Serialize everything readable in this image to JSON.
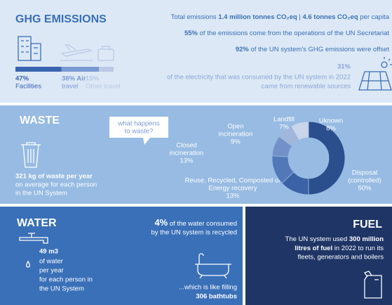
{
  "ghg": {
    "title": "GHG EMISSIONS",
    "total": [
      "Total emissions ",
      "1.4 million tonnes CO₂eq",
      " | ",
      "4.6 tonnes CO₂eq",
      " per capita"
    ],
    "secretariat": [
      "55%",
      " of the emissions come from the operations of the UN Secretariat"
    ],
    "offset": [
      "92%",
      " of the UN system's GHG emissions were offset"
    ],
    "renewable": {
      "value": "31%",
      "lines": [
        "of the electricity that was consumed by the UN system in 2022",
        "came from renewable sources"
      ]
    },
    "breakdown": [
      {
        "value": 47,
        "label": "47%",
        "name": [
          "Facilities"
        ],
        "color": "#3a63b0"
      },
      {
        "value": 38,
        "label": "38% Air",
        "name": [
          "travel"
        ],
        "color": "#7a9ad2"
      },
      {
        "value": 15,
        "label": "15%",
        "name": [
          "Other travel"
        ],
        "color": "#b9c9e6"
      }
    ]
  },
  "waste": {
    "title": "WASTE",
    "question": [
      "what happens",
      "to waste?"
    ],
    "per_person": [
      "321 kg of waste per year",
      "on average for each person",
      "in the UN System"
    ],
    "segments": [
      {
        "name": [
          "Disposal",
          "(controlled)"
        ],
        "value": 50,
        "label": "50%",
        "color": "#2b4e8c"
      },
      {
        "name": [
          "Reuse, Recycled, Composted or",
          "Energy recovery"
        ],
        "value": 13,
        "label": "13%",
        "color": "#3b62a6"
      },
      {
        "name": [
          "Closed",
          "incineration"
        ],
        "value": 13,
        "label": "13%",
        "color": "#5278b8"
      },
      {
        "name": [
          "Open",
          "incineration"
        ],
        "value": 9,
        "label": "9%",
        "color": "#7391c8"
      },
      {
        "name": [
          "Landfill"
        ],
        "value": 7,
        "label": "7%",
        "color": "#a2b6da"
      },
      {
        "name": [
          "Uknown"
        ],
        "value": 8,
        "label": "8%",
        "color": "#c9d5ea"
      }
    ]
  },
  "water": {
    "title": "WATER",
    "amount": "49 m3",
    "amount_lines": [
      "of water",
      "per year",
      "for each person in",
      "the UN System"
    ],
    "recycled": [
      "4%",
      " of the water consumed",
      "by the UN system is recycled"
    ],
    "bathtubs": [
      "...which is like filling",
      "306 bathtubs"
    ]
  },
  "fuel": {
    "title": "FUEL",
    "lines": [
      "The UN system used ",
      "300 million",
      "litres of fuel",
      " in 2022 to run its",
      "fleets, generators and boilers"
    ]
  }
}
